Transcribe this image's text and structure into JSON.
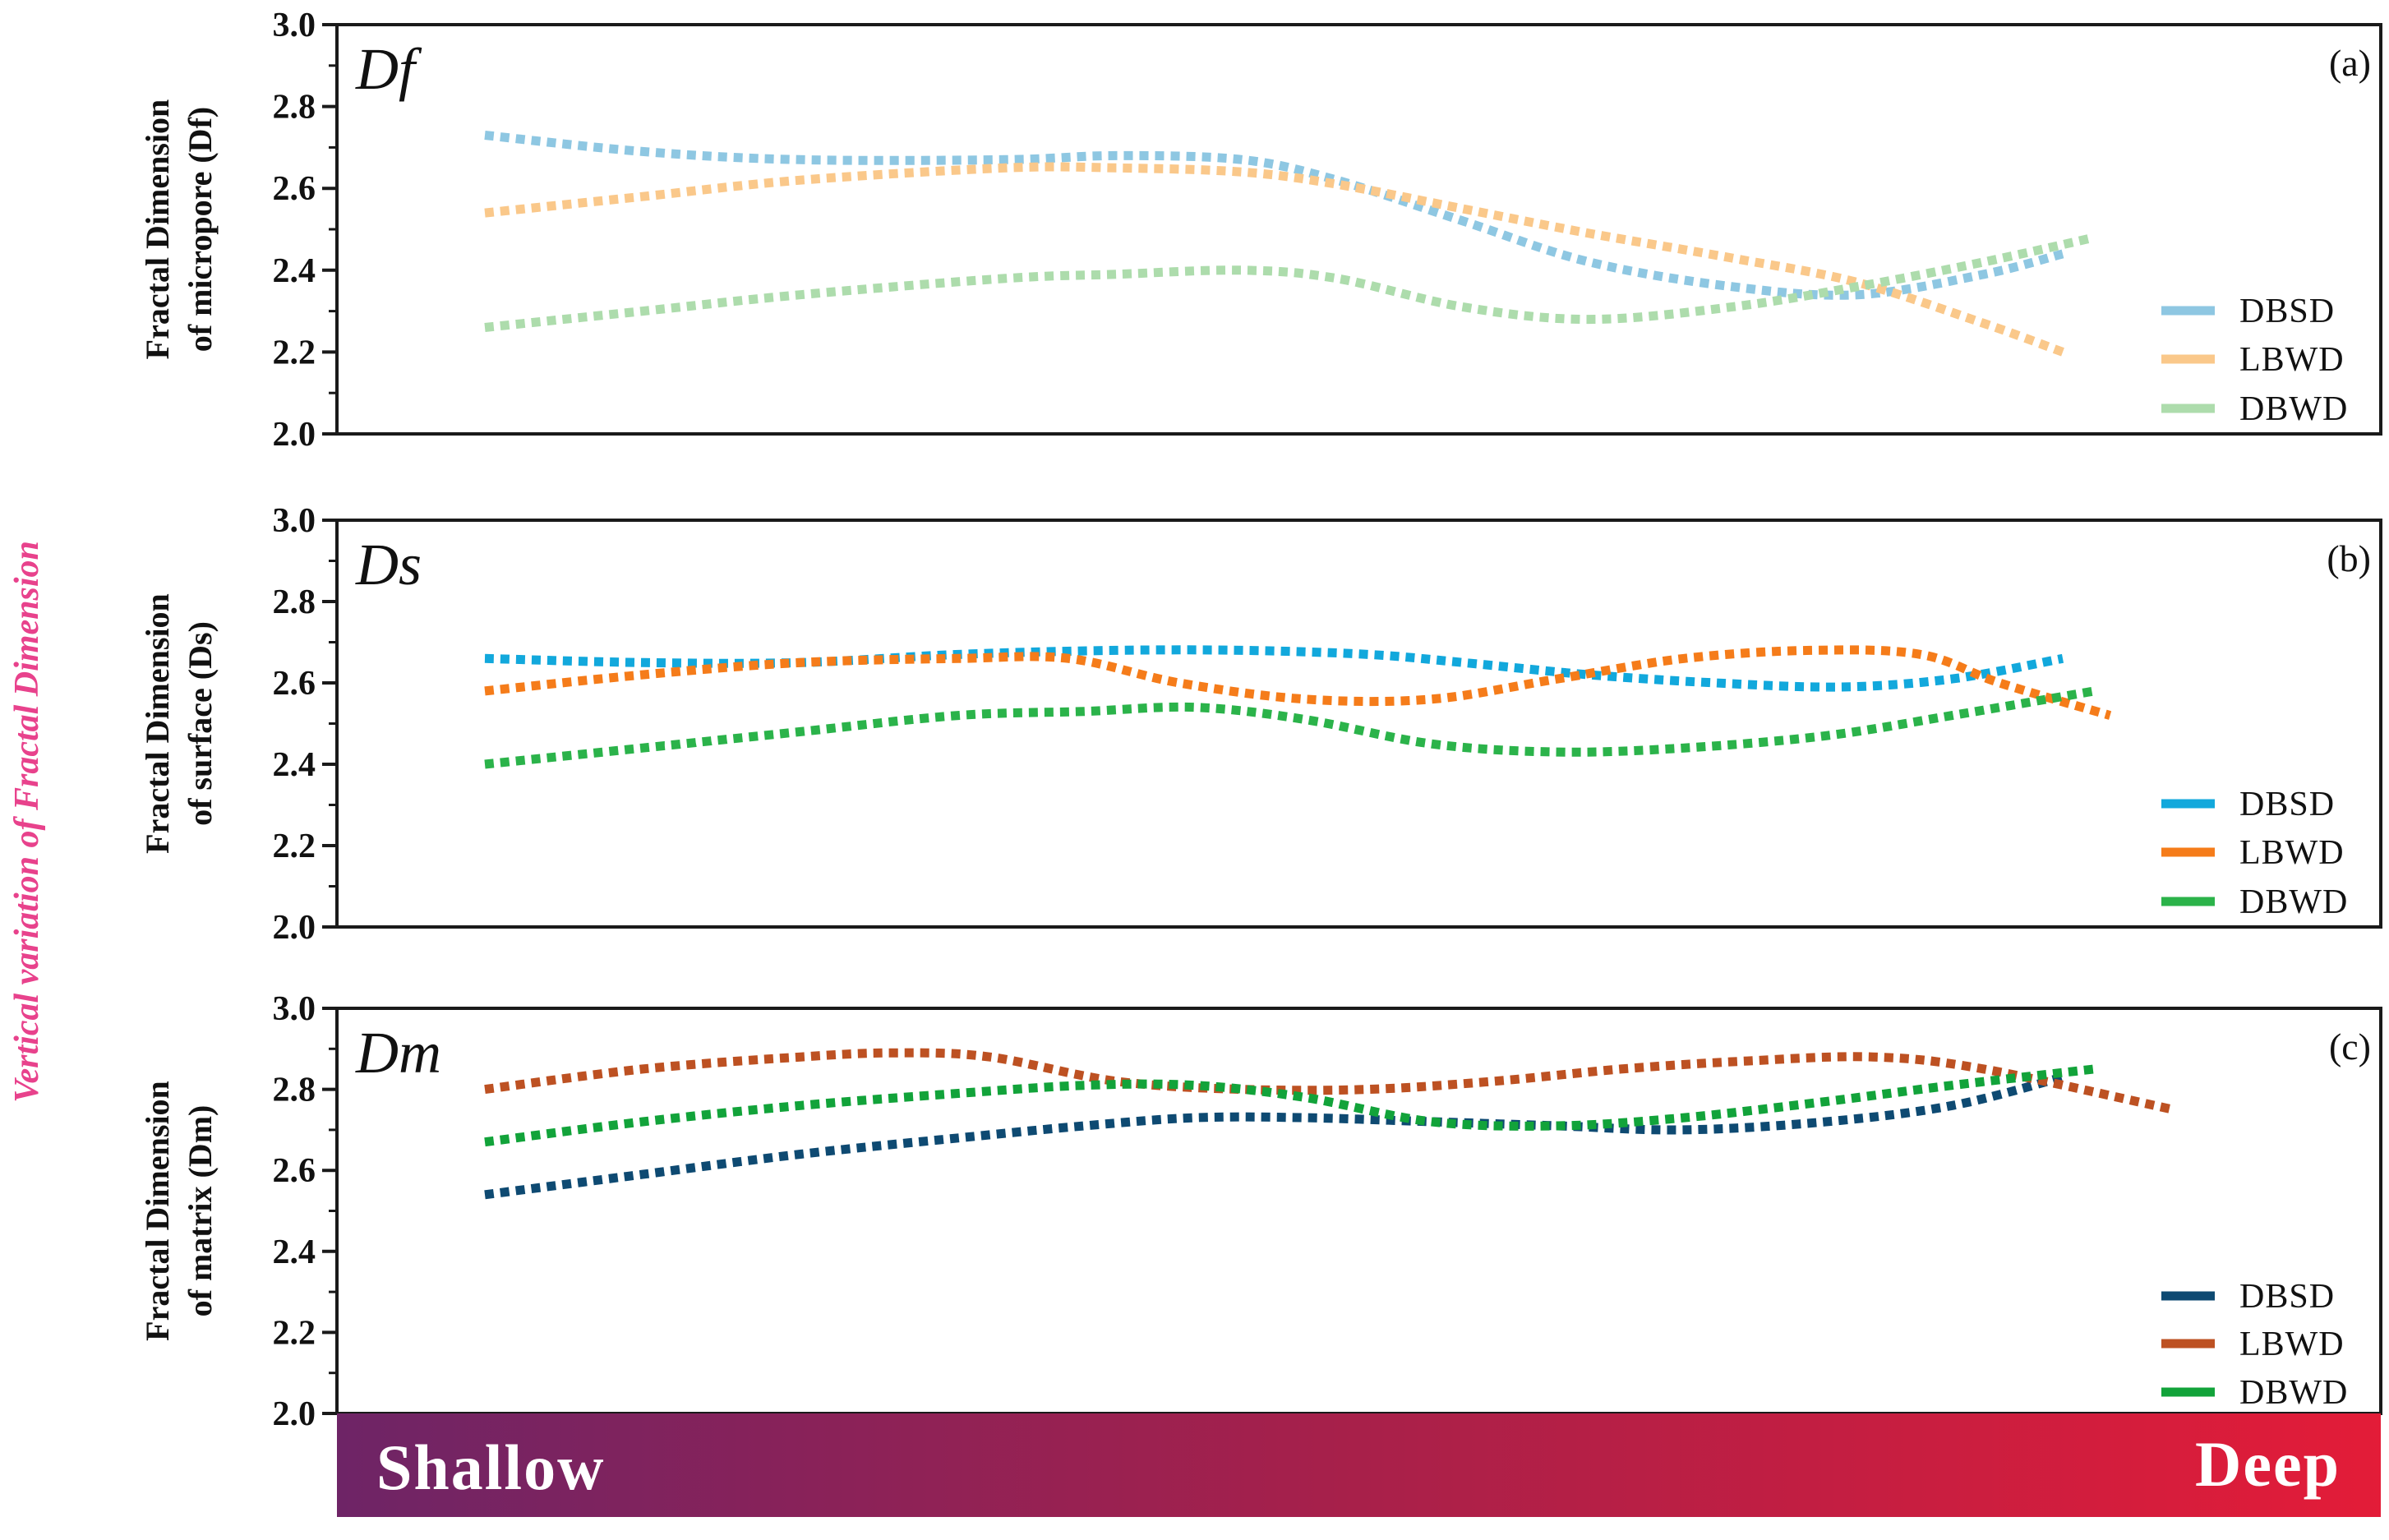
{
  "figure": {
    "vertical_title": "Vertical variation of  Fractal Dimension",
    "gradient_left_label": "Shallow",
    "gradient_right_label": "Deep",
    "gradient_colors": [
      "#6e2466",
      "#a8204a",
      "#e31c38"
    ]
  },
  "chart_data": [
    {
      "type": "line",
      "panel_label": "(a)",
      "tag": "Df",
      "ylabel_lines": [
        "Fractal Dimension",
        "of micropore (Df)"
      ],
      "ylim": [
        2.0,
        3.0
      ],
      "yticks": [
        "2.0",
        "2.2",
        "2.4",
        "2.6",
        "2.8",
        "3.0"
      ],
      "xlim": [
        0,
        1
      ],
      "legend_position": "bottom-right",
      "series": [
        {
          "name": "DBSD",
          "color": "#8ec7e2",
          "x": [
            0.0,
            0.1,
            0.2,
            0.33,
            0.4,
            0.48,
            0.54,
            0.62,
            0.7,
            0.79,
            0.87,
            0.95,
            1.0
          ],
          "y": [
            2.73,
            2.69,
            2.67,
            2.67,
            2.68,
            2.67,
            2.62,
            2.52,
            2.42,
            2.36,
            2.34,
            2.39,
            2.44
          ]
        },
        {
          "name": "LBWD",
          "color": "#fac88a",
          "x": [
            0.0,
            0.1,
            0.2,
            0.33,
            0.4,
            0.48,
            0.54,
            0.62,
            0.7,
            0.79,
            0.87,
            0.95,
            1.0
          ],
          "y": [
            2.54,
            2.58,
            2.62,
            2.65,
            2.65,
            2.64,
            2.61,
            2.55,
            2.49,
            2.43,
            2.37,
            2.27,
            2.2
          ]
        },
        {
          "name": "DBWD",
          "color": "#addcac",
          "x": [
            0.0,
            0.1,
            0.2,
            0.33,
            0.4,
            0.48,
            0.54,
            0.62,
            0.7,
            0.79,
            0.87,
            0.95,
            1.02
          ],
          "y": [
            2.26,
            2.3,
            2.34,
            2.38,
            2.39,
            2.4,
            2.38,
            2.31,
            2.28,
            2.31,
            2.36,
            2.42,
            2.48
          ]
        }
      ]
    },
    {
      "type": "line",
      "panel_label": "(b)",
      "tag": "Ds",
      "ylabel_lines": [
        "Fractal Dimension",
        "of surface (Ds)"
      ],
      "ylim": [
        2.0,
        3.0
      ],
      "yticks": [
        "2.0",
        "2.2",
        "2.4",
        "2.6",
        "2.8",
        "3.0"
      ],
      "xlim": [
        0,
        1
      ],
      "legend_position": "bottom-right",
      "series": [
        {
          "name": "DBSD",
          "color": "#12a8dc",
          "x": [
            0.0,
            0.1,
            0.2,
            0.3,
            0.4,
            0.48,
            0.56,
            0.62,
            0.7,
            0.78,
            0.86,
            0.93,
            1.0
          ],
          "y": [
            2.66,
            2.65,
            2.65,
            2.67,
            2.68,
            2.68,
            2.67,
            2.65,
            2.62,
            2.6,
            2.59,
            2.61,
            2.66
          ]
        },
        {
          "name": "LBWD",
          "color": "#f57c1a",
          "x": [
            0.0,
            0.1,
            0.2,
            0.3,
            0.37,
            0.44,
            0.52,
            0.6,
            0.68,
            0.76,
            0.84,
            0.91,
            0.96,
            1.03
          ],
          "y": [
            2.58,
            2.62,
            2.65,
            2.66,
            2.66,
            2.6,
            2.56,
            2.56,
            2.61,
            2.66,
            2.68,
            2.67,
            2.6,
            2.52
          ]
        },
        {
          "name": "DBWD",
          "color": "#2bb34a",
          "x": [
            0.0,
            0.1,
            0.2,
            0.3,
            0.38,
            0.45,
            0.52,
            0.6,
            0.68,
            0.76,
            0.85,
            0.93,
            1.02
          ],
          "y": [
            2.4,
            2.44,
            2.48,
            2.52,
            2.53,
            2.54,
            2.51,
            2.45,
            2.43,
            2.44,
            2.47,
            2.52,
            2.58
          ]
        }
      ]
    },
    {
      "type": "line",
      "panel_label": "(c)",
      "tag": "Dm",
      "ylabel_lines": [
        "Fractal Dimension",
        "of matrix (Dm)"
      ],
      "ylim": [
        2.0,
        3.0
      ],
      "yticks": [
        "2.0",
        "2.2",
        "2.4",
        "2.6",
        "2.8",
        "3.0"
      ],
      "xlim": [
        0,
        1
      ],
      "legend_position": "bottom-right",
      "series": [
        {
          "name": "DBSD",
          "color": "#0e4a72",
          "x": [
            0.0,
            0.1,
            0.2,
            0.3,
            0.38,
            0.45,
            0.52,
            0.6,
            0.68,
            0.76,
            0.85,
            0.93,
            1.0
          ],
          "y": [
            2.54,
            2.59,
            2.64,
            2.68,
            2.71,
            2.73,
            2.73,
            2.72,
            2.71,
            2.7,
            2.72,
            2.76,
            2.83
          ]
        },
        {
          "name": "LBWD",
          "color": "#bd5122",
          "x": [
            0.0,
            0.1,
            0.2,
            0.26,
            0.32,
            0.4,
            0.48,
            0.56,
            0.64,
            0.72,
            0.8,
            0.88,
            0.95,
            1.07
          ],
          "y": [
            2.8,
            2.85,
            2.88,
            2.89,
            2.88,
            2.82,
            2.8,
            2.8,
            2.82,
            2.85,
            2.87,
            2.88,
            2.85,
            2.75
          ]
        },
        {
          "name": "DBWD",
          "color": "#12a33a",
          "x": [
            0.0,
            0.1,
            0.2,
            0.3,
            0.38,
            0.45,
            0.52,
            0.6,
            0.68,
            0.76,
            0.85,
            0.93,
            1.02
          ],
          "y": [
            2.67,
            2.72,
            2.76,
            2.79,
            2.81,
            2.81,
            2.78,
            2.72,
            2.71,
            2.73,
            2.77,
            2.81,
            2.85
          ]
        }
      ]
    }
  ]
}
